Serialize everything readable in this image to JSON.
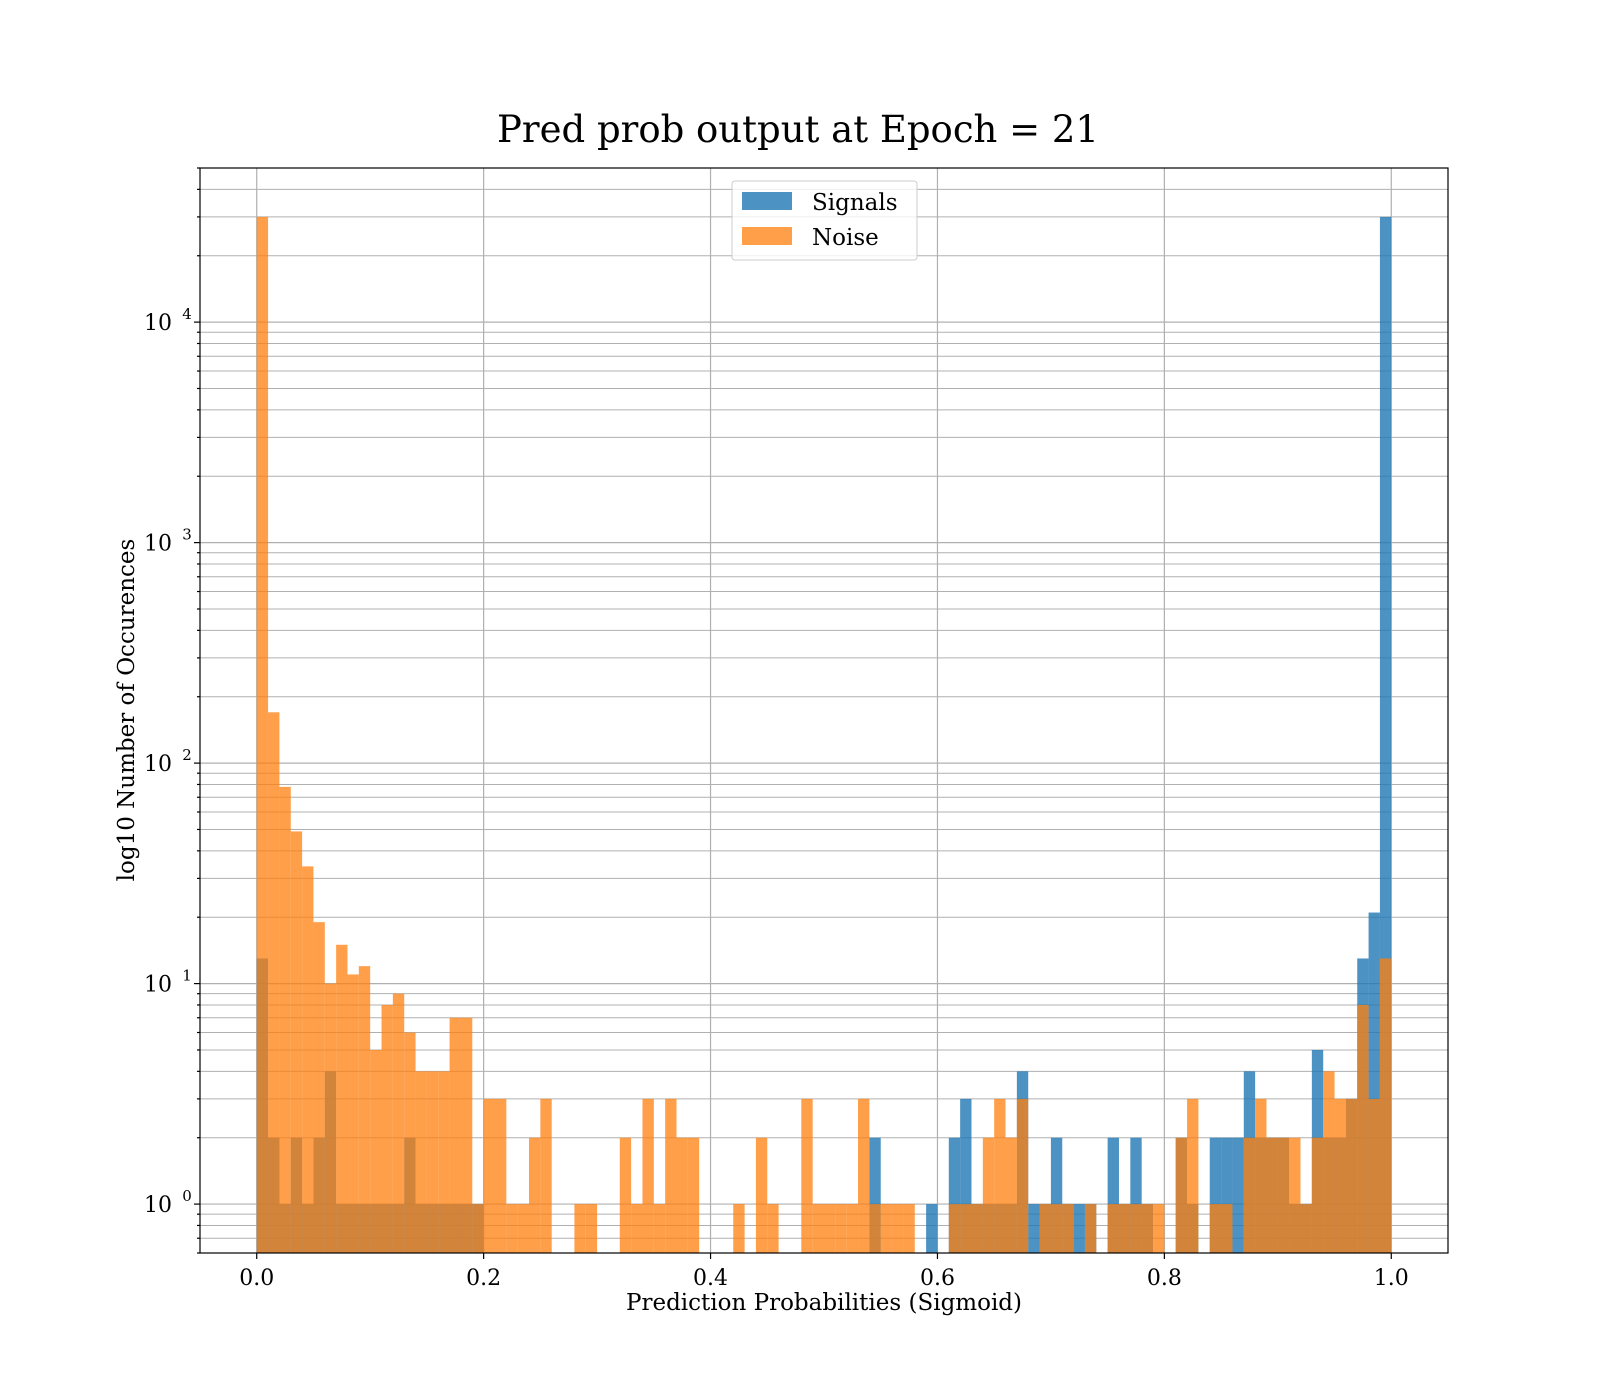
{
  "chart_data": {
    "type": "bar",
    "title": "Pred prob output at Epoch = 21",
    "xlabel": "Prediction Probabilities (Sigmoid)",
    "ylabel": "log10 Number of Occurences",
    "yscale": "log",
    "xlim": [
      -0.05,
      1.05
    ],
    "ylim": [
      0.6,
      50000
    ],
    "grid": true,
    "legend_position": "upper-center",
    "bins": {
      "start": 0.0,
      "end": 1.0,
      "count": 100
    },
    "x_ticks": [
      "0.0",
      "0.2",
      "0.4",
      "0.6",
      "0.8",
      "1.0"
    ],
    "x_tick_values": [
      0.0,
      0.2,
      0.4,
      0.6,
      0.8,
      1.0
    ],
    "y_ticks": [
      {
        "value": 1,
        "base": "10",
        "exp": "0"
      },
      {
        "value": 10,
        "base": "10",
        "exp": "1"
      },
      {
        "value": 100,
        "base": "10",
        "exp": "2"
      },
      {
        "value": 1000,
        "base": "10",
        "exp": "3"
      },
      {
        "value": 10000,
        "base": "10",
        "exp": "4"
      }
    ],
    "series": [
      {
        "name": "Signals",
        "color": "#1f77b4",
        "opacity": 0.8,
        "values": [
          13,
          2,
          1,
          2,
          1,
          2,
          4,
          1,
          1,
          1,
          1,
          1,
          1,
          2,
          1,
          1,
          1,
          1,
          1,
          1,
          0,
          0,
          0,
          0,
          0,
          0,
          0,
          0,
          0,
          0,
          0,
          0,
          0,
          0,
          0,
          0,
          0,
          0,
          0,
          0,
          0,
          0,
          0,
          0,
          0,
          0,
          0,
          0,
          0,
          0,
          0,
          0,
          0,
          0,
          2,
          0,
          0,
          0,
          0,
          1,
          0,
          2,
          3,
          1,
          1,
          1,
          1,
          4,
          1,
          1,
          2,
          1,
          1,
          1,
          0,
          2,
          1,
          2,
          1,
          0,
          0,
          2,
          1,
          0,
          2,
          2,
          2,
          4,
          2,
          2,
          2,
          1,
          1,
          5,
          2,
          2,
          3,
          13,
          21,
          30000
        ]
      },
      {
        "name": "Noise",
        "color": "#ff7f0e",
        "opacity": 0.75,
        "values": [
          30000,
          170,
          78,
          49,
          34,
          19,
          10,
          15,
          11,
          12,
          5,
          8,
          9,
          6,
          4,
          4,
          4,
          7,
          7,
          1,
          3,
          3,
          1,
          1,
          2,
          3,
          0,
          0,
          1,
          1,
          0,
          0,
          2,
          1,
          3,
          1,
          3,
          2,
          2,
          0,
          0,
          0,
          1,
          0,
          2,
          1,
          0,
          0,
          3,
          1,
          1,
          1,
          1,
          3,
          1,
          1,
          1,
          1,
          0,
          0,
          0,
          1,
          1,
          1,
          2,
          3,
          2,
          3,
          0,
          1,
          1,
          1,
          0,
          1,
          0,
          1,
          1,
          1,
          1,
          1,
          0,
          2,
          3,
          0,
          1,
          1,
          0,
          2,
          3,
          2,
          2,
          2,
          1,
          2,
          4,
          3,
          3,
          8,
          3,
          13
        ]
      }
    ]
  }
}
